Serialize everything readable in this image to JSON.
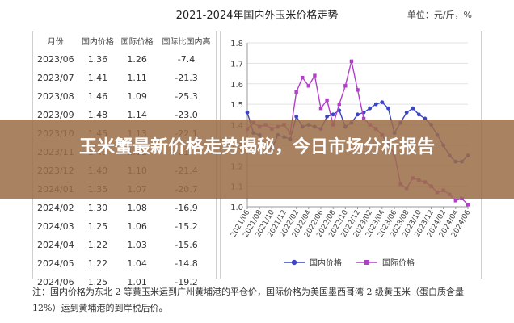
{
  "header": {
    "title": "2021-2024年国内外玉米价格走势",
    "unit": "单位：元/斤，%"
  },
  "table": {
    "columns": [
      "月份",
      "国内价格",
      "国际价格",
      "国际比国内高"
    ],
    "rows": [
      [
        "2023/06",
        "1.36",
        "1.26",
        "-7.4"
      ],
      [
        "2023/07",
        "1.41",
        "1.11",
        "-21.3"
      ],
      [
        "2023/08",
        "1.46",
        "1.09",
        "-25.3"
      ],
      [
        "2023/09",
        "1.48",
        "1.14",
        "-23.0"
      ],
      [
        "2023/10",
        "1.45",
        "1.13",
        "-22.1"
      ],
      [
        "2023/11",
        "1.43",
        "1.12",
        "-21.7"
      ],
      [
        "2023/12",
        "1.40",
        "1.10",
        "-21.4"
      ],
      [
        "2024/01",
        "1.35",
        "1.07",
        "-20.7"
      ],
      [
        "2024/02",
        "1.30",
        "1.08",
        "-16.9"
      ],
      [
        "2024/03",
        "1.25",
        "1.06",
        "-15.2"
      ],
      [
        "2024/04",
        "1.22",
        "1.03",
        "-15.6"
      ],
      [
        "2024/05",
        "1.22",
        "1.04",
        "-14.8"
      ],
      [
        "2024/06",
        "1.25",
        "1.01",
        "-19.2"
      ]
    ]
  },
  "banner": {
    "text": "玉米蟹最新价格走势揭秘，今日市场分析报告"
  },
  "note": {
    "text": "注：国内价格为东北 2 等黄玉米运到广州黄埔港的平仓价，国际价格为美国墨西哥湾 2 级黄玉米（蛋白质含量 12%）运到黄埔港的到岸税后价。"
  },
  "chart_data": {
    "type": "line",
    "title": "2021-2024年国内外玉米价格走势",
    "ylim": [
      1.0,
      1.8
    ],
    "yticks": [
      "1.0",
      "1.1",
      "1.2",
      "1.3",
      "1.4",
      "1.5",
      "1.6",
      "1.7",
      "1.8"
    ],
    "xtick_labels": [
      "2021/06",
      "2021/08",
      "2021/10",
      "2021/12",
      "2022/02",
      "2022/04",
      "2022/06",
      "2022/08",
      "2022/10",
      "2022/12",
      "2023/02",
      "2023/04",
      "2023/06",
      "2023/08",
      "2023/10",
      "2023/12",
      "2024/02",
      "2024/04",
      "2024/06"
    ],
    "x": [
      "2021/06",
      "2021/07",
      "2021/08",
      "2021/09",
      "2021/10",
      "2021/11",
      "2021/12",
      "2022/01",
      "2022/02",
      "2022/03",
      "2022/04",
      "2022/05",
      "2022/06",
      "2022/07",
      "2022/08",
      "2022/09",
      "2022/10",
      "2022/11",
      "2022/12",
      "2023/01",
      "2023/02",
      "2023/03",
      "2023/04",
      "2023/05",
      "2023/06",
      "2023/07",
      "2023/08",
      "2023/09",
      "2023/10",
      "2023/11",
      "2023/12",
      "2024/01",
      "2024/02",
      "2024/03",
      "2024/04",
      "2024/05",
      "2024/06"
    ],
    "legend_position": "bottom",
    "series": [
      {
        "name": "国内价格",
        "color": "#3b46c4",
        "values": [
          1.46,
          1.36,
          1.35,
          1.3,
          1.28,
          1.35,
          1.34,
          1.33,
          1.44,
          1.39,
          1.4,
          1.39,
          1.38,
          1.44,
          1.45,
          1.47,
          1.39,
          1.41,
          1.45,
          1.46,
          1.48,
          1.5,
          1.51,
          1.48,
          1.36,
          1.41,
          1.46,
          1.48,
          1.45,
          1.43,
          1.4,
          1.35,
          1.3,
          1.25,
          1.22,
          1.22,
          1.25
        ]
      },
      {
        "name": "国际价格",
        "color": "#b23fc9",
        "values": [
          1.38,
          1.41,
          1.39,
          1.4,
          1.38,
          1.39,
          1.4,
          1.36,
          1.56,
          1.63,
          1.59,
          1.64,
          1.48,
          1.52,
          1.4,
          1.5,
          1.59,
          1.71,
          1.57,
          1.43,
          1.4,
          1.38,
          1.35,
          1.3,
          1.26,
          1.11,
          1.09,
          1.14,
          1.13,
          1.12,
          1.1,
          1.07,
          1.08,
          1.06,
          1.03,
          1.04,
          1.01
        ]
      }
    ]
  }
}
